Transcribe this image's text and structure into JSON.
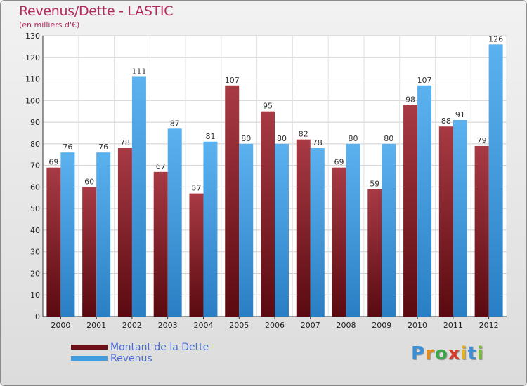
{
  "chart_data": {
    "type": "bar",
    "title": "Revenus/Dette - LASTIC",
    "subtitle": "(en milliers d'€)",
    "categories": [
      "2000",
      "2001",
      "2002",
      "2003",
      "2004",
      "2005",
      "2006",
      "2007",
      "2008",
      "2009",
      "2010",
      "2011",
      "2012"
    ],
    "series": [
      {
        "name": "Montant de la Dette",
        "color": "#7a1820",
        "values": [
          69,
          60,
          78,
          67,
          57,
          107,
          95,
          82,
          69,
          59,
          98,
          88,
          79
        ]
      },
      {
        "name": "Revenus",
        "color": "#3f9de0",
        "values": [
          76,
          76,
          111,
          87,
          81,
          80,
          80,
          78,
          80,
          80,
          107,
          91,
          126
        ]
      }
    ],
    "ylim": [
      0,
      130
    ],
    "yticks": [
      0,
      10,
      20,
      30,
      40,
      50,
      60,
      70,
      80,
      90,
      100,
      110,
      120,
      130
    ],
    "grid": true,
    "legend": "bottom-left"
  },
  "legend": {
    "items": [
      "Montant de la Dette",
      "Revenus"
    ]
  },
  "logo": {
    "letters": [
      "P",
      "r",
      "o",
      "x",
      "i",
      "t",
      "i"
    ],
    "colors": [
      "#3a8fd6",
      "#e08a1e",
      "#3aa84a",
      "#d63a2a",
      "#e0b01e",
      "#3a8fd6",
      "#7ab83a"
    ]
  }
}
